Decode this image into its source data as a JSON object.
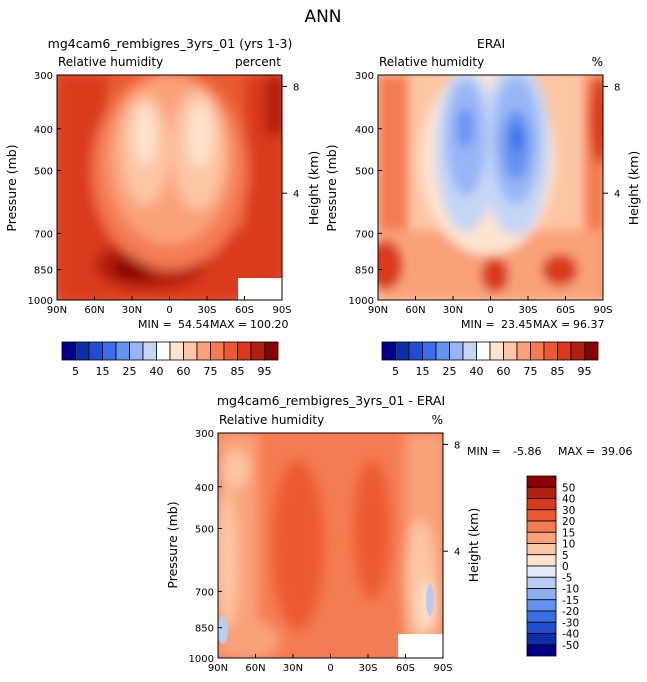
{
  "page_title": "ANN",
  "chart_data": [
    {
      "type": "heatmap",
      "id": "model",
      "title": "mg4cam6_rembigres_3yrs_01 (yrs 1-3)",
      "subtitle_left": "Relative humidity",
      "subtitle_right": "percent",
      "ylabel": "Pressure (mb)",
      "ylabel_right": "Height (km)",
      "x_ticks": [
        "90N",
        "60N",
        "30N",
        "0",
        "30S",
        "60S",
        "90S"
      ],
      "y_ticks": [
        "300",
        "400",
        "500",
        "700",
        "850",
        "1000"
      ],
      "y_ticks_right": [
        "8",
        "4"
      ],
      "min_label": "MIN =",
      "min_value": "54.54",
      "max_label": "MAX =",
      "max_value": "100.20"
    },
    {
      "type": "heatmap",
      "id": "obs",
      "title": "ERAI",
      "subtitle_left": "Relative humidity",
      "subtitle_right": "%",
      "ylabel": "Pressure (mb)",
      "ylabel_right": "Height (km)",
      "x_ticks": [
        "90N",
        "60N",
        "30N",
        "0",
        "30S",
        "60S",
        "90S"
      ],
      "y_ticks": [
        "300",
        "400",
        "500",
        "700",
        "850",
        "1000"
      ],
      "y_ticks_right": [
        "8",
        "4"
      ],
      "min_label": "MIN =",
      "min_value": "23.45",
      "max_label": "MAX =",
      "max_value": "96.37"
    },
    {
      "type": "heatmap",
      "id": "diff",
      "title": "mg4cam6_rembigres_3yrs_01 - ERAI",
      "subtitle_left": "Relative humidity",
      "subtitle_right": "%",
      "ylabel": "Pressure (mb)",
      "ylabel_right": "Height (km)",
      "x_ticks": [
        "90N",
        "60N",
        "30N",
        "0",
        "30S",
        "60S",
        "90S"
      ],
      "y_ticks": [
        "300",
        "400",
        "500",
        "700",
        "850",
        "1000"
      ],
      "y_ticks_right": [
        "8",
        "4"
      ],
      "min_label": "MIN =",
      "min_value": "-5.86",
      "max_label": "MAX =",
      "max_value": "39.06"
    }
  ],
  "colorbar_rh": {
    "labels": [
      "5",
      "15",
      "25",
      "40",
      "60",
      "75",
      "85",
      "95"
    ],
    "colors": [
      "#00008b",
      "#0a2fa8",
      "#1f4fd0",
      "#3a6fe6",
      "#6592f2",
      "#98b6f5",
      "#c5d6f5",
      "#ffffff",
      "#fde4cf",
      "#fcc6a4",
      "#f9a27a",
      "#f47c52",
      "#ec5a33",
      "#d93a1b",
      "#b31f0d",
      "#8b0000"
    ]
  },
  "colorbar_diff": {
    "labels": [
      "50",
      "40",
      "30",
      "20",
      "15",
      "10",
      "5",
      "0",
      "-5",
      "-10",
      "-15",
      "-20",
      "-30",
      "-40",
      "-50"
    ],
    "colors": [
      "#8b0000",
      "#b31f0d",
      "#d93a1b",
      "#ec5a33",
      "#f47c52",
      "#f9a27a",
      "#fcc6a4",
      "#fde4cf",
      "#e2ebf7",
      "#b8cdf2",
      "#8fb0ef",
      "#6592f2",
      "#3a6fe6",
      "#1f4fd0",
      "#0a2fa8",
      "#00008b"
    ]
  }
}
